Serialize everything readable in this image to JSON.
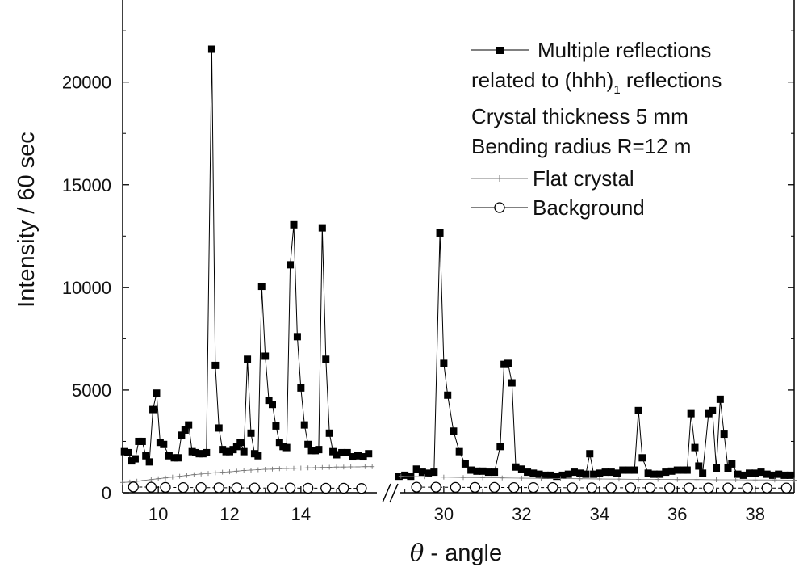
{
  "chart_data": {
    "type": "line",
    "xlabel_symbol": "θ",
    "xlabel": "- angle",
    "ylabel": "Intensity / 60 sec",
    "ylim": [
      0,
      24000
    ],
    "x_segments": [
      {
        "xlim": [
          9,
          16.2
        ],
        "ticks": [
          10,
          12,
          14
        ]
      },
      {
        "xlim": [
          28.8,
          39
        ],
        "ticks": [
          30,
          32,
          34,
          36,
          38
        ]
      }
    ],
    "y_ticks": [
      0,
      5000,
      10000,
      15000,
      20000
    ],
    "axis_break": true,
    "legend_position": "top-right",
    "legend_notes": [
      "Crystal thickness 5 mm",
      "Bending radius R=12 m"
    ],
    "series": [
      {
        "name": "Multiple reflections",
        "name_line2": "related to (hhh)",
        "name_line2_sub": "1",
        "name_line2_tail": " reflections",
        "marker": "square",
        "color": "#000000",
        "points": [
          [
            9.05,
            2000
          ],
          [
            9.15,
            1950
          ],
          [
            9.25,
            1550
          ],
          [
            9.35,
            1650
          ],
          [
            9.45,
            2500
          ],
          [
            9.55,
            2500
          ],
          [
            9.65,
            1800
          ],
          [
            9.75,
            1500
          ],
          [
            9.85,
            4050
          ],
          [
            9.95,
            4850
          ],
          [
            10.05,
            2450
          ],
          [
            10.15,
            2350
          ],
          [
            10.3,
            1800
          ],
          [
            10.45,
            1700
          ],
          [
            10.55,
            1700
          ],
          [
            10.65,
            2800
          ],
          [
            10.75,
            3050
          ],
          [
            10.85,
            3300
          ],
          [
            10.95,
            2000
          ],
          [
            11.05,
            1950
          ],
          [
            11.15,
            1900
          ],
          [
            11.25,
            1900
          ],
          [
            11.35,
            1950
          ],
          [
            11.5,
            21600
          ],
          [
            11.6,
            6200
          ],
          [
            11.7,
            3150
          ],
          [
            11.8,
            2100
          ],
          [
            11.9,
            2000
          ],
          [
            12.0,
            2000
          ],
          [
            12.1,
            2100
          ],
          [
            12.2,
            2250
          ],
          [
            12.3,
            2450
          ],
          [
            12.4,
            2000
          ],
          [
            12.5,
            6500
          ],
          [
            12.6,
            2900
          ],
          [
            12.7,
            1900
          ],
          [
            12.8,
            1800
          ],
          [
            12.9,
            10050
          ],
          [
            13.0,
            6650
          ],
          [
            13.1,
            4500
          ],
          [
            13.2,
            4300
          ],
          [
            13.3,
            3250
          ],
          [
            13.4,
            2450
          ],
          [
            13.5,
            2250
          ],
          [
            13.6,
            2200
          ],
          [
            13.7,
            11100
          ],
          [
            13.8,
            13050
          ],
          [
            13.9,
            7600
          ],
          [
            14.0,
            5100
          ],
          [
            14.1,
            3300
          ],
          [
            14.2,
            2350
          ],
          [
            14.3,
            2050
          ],
          [
            14.4,
            2050
          ],
          [
            14.5,
            2100
          ],
          [
            14.6,
            12900
          ],
          [
            14.7,
            6500
          ],
          [
            14.8,
            2900
          ],
          [
            14.9,
            2000
          ],
          [
            15.0,
            1850
          ],
          [
            15.15,
            1950
          ],
          [
            15.3,
            1950
          ],
          [
            15.45,
            1750
          ],
          [
            15.6,
            1800
          ],
          [
            15.75,
            1750
          ],
          [
            15.9,
            1900
          ],
          null,
          [
            28.85,
            800
          ],
          [
            29.0,
            850
          ],
          [
            29.15,
            800
          ],
          [
            29.3,
            1150
          ],
          [
            29.45,
            1000
          ],
          [
            29.6,
            950
          ],
          [
            29.75,
            1000
          ],
          [
            29.9,
            12650
          ],
          [
            30.0,
            6300
          ],
          [
            30.1,
            4750
          ],
          [
            30.25,
            3000
          ],
          [
            30.4,
            2000
          ],
          [
            30.55,
            1400
          ],
          [
            30.7,
            1100
          ],
          [
            30.85,
            1050
          ],
          [
            31.0,
            1050
          ],
          [
            31.15,
            1000
          ],
          [
            31.3,
            1000
          ],
          [
            31.45,
            2250
          ],
          [
            31.55,
            6250
          ],
          [
            31.65,
            6300
          ],
          [
            31.75,
            5350
          ],
          [
            31.85,
            1250
          ],
          [
            32.0,
            1150
          ],
          [
            32.15,
            1000
          ],
          [
            32.3,
            950
          ],
          [
            32.45,
            900
          ],
          [
            32.6,
            850
          ],
          [
            32.75,
            850
          ],
          [
            32.9,
            800
          ],
          [
            33.05,
            850
          ],
          [
            33.2,
            900
          ],
          [
            33.35,
            1000
          ],
          [
            33.5,
            950
          ],
          [
            33.65,
            900
          ],
          [
            33.75,
            1900
          ],
          [
            33.85,
            900
          ],
          [
            34.0,
            950
          ],
          [
            34.15,
            1000
          ],
          [
            34.3,
            1000
          ],
          [
            34.45,
            950
          ],
          [
            34.6,
            1100
          ],
          [
            34.75,
            1100
          ],
          [
            34.9,
            1100
          ],
          [
            35.0,
            4000
          ],
          [
            35.1,
            1700
          ],
          [
            35.25,
            950
          ],
          [
            35.4,
            900
          ],
          [
            35.55,
            900
          ],
          [
            35.7,
            1000
          ],
          [
            35.85,
            1050
          ],
          [
            36.0,
            1100
          ],
          [
            36.15,
            1100
          ],
          [
            36.25,
            1100
          ],
          [
            36.35,
            3850
          ],
          [
            36.45,
            2200
          ],
          [
            36.55,
            1300
          ],
          [
            36.65,
            950
          ],
          [
            36.8,
            3850
          ],
          [
            36.9,
            4000
          ],
          [
            37.0,
            1200
          ],
          [
            37.1,
            4550
          ],
          [
            37.2,
            2850
          ],
          [
            37.3,
            1200
          ],
          [
            37.4,
            1400
          ],
          [
            37.55,
            900
          ],
          [
            37.7,
            850
          ],
          [
            37.85,
            950
          ],
          [
            38.0,
            950
          ],
          [
            38.15,
            1000
          ],
          [
            38.3,
            900
          ],
          [
            38.45,
            850
          ],
          [
            38.6,
            900
          ],
          [
            38.75,
            850
          ],
          [
            38.9,
            850
          ]
        ]
      },
      {
        "name": "Flat crystal",
        "marker": "plus",
        "color": "#777777",
        "points": [
          [
            9.0,
            500
          ],
          [
            9.2,
            520
          ],
          [
            9.4,
            560
          ],
          [
            9.6,
            600
          ],
          [
            9.8,
            640
          ],
          [
            10.0,
            680
          ],
          [
            10.2,
            720
          ],
          [
            10.4,
            760
          ],
          [
            10.6,
            800
          ],
          [
            10.8,
            840
          ],
          [
            11.0,
            880
          ],
          [
            11.2,
            910
          ],
          [
            11.4,
            940
          ],
          [
            11.6,
            970
          ],
          [
            11.8,
            1000
          ],
          [
            12.0,
            1020
          ],
          [
            12.2,
            1050
          ],
          [
            12.4,
            1080
          ],
          [
            12.6,
            1100
          ],
          [
            12.8,
            1120
          ],
          [
            13.0,
            1140
          ],
          [
            13.2,
            1150
          ],
          [
            13.4,
            1170
          ],
          [
            13.6,
            1180
          ],
          [
            13.8,
            1190
          ],
          [
            14.0,
            1200
          ],
          [
            14.2,
            1210
          ],
          [
            14.4,
            1220
          ],
          [
            14.6,
            1230
          ],
          [
            14.8,
            1240
          ],
          [
            15.0,
            1250
          ],
          [
            15.2,
            1250
          ],
          [
            15.4,
            1260
          ],
          [
            15.6,
            1260
          ],
          [
            15.8,
            1270
          ],
          [
            16.0,
            1270
          ],
          null,
          [
            28.9,
            800
          ],
          [
            29.5,
            780
          ],
          [
            30.0,
            760
          ],
          [
            30.5,
            740
          ],
          [
            31.0,
            730
          ],
          [
            31.5,
            720
          ],
          [
            32.0,
            710
          ],
          [
            32.5,
            700
          ],
          [
            33.0,
            690
          ],
          [
            33.5,
            680
          ],
          [
            34.0,
            670
          ],
          [
            34.5,
            660
          ],
          [
            35.0,
            650
          ],
          [
            35.5,
            650
          ],
          [
            36.0,
            640
          ],
          [
            36.5,
            640
          ],
          [
            37.0,
            630
          ],
          [
            37.5,
            630
          ],
          [
            38.0,
            620
          ],
          [
            38.5,
            620
          ],
          [
            39.0,
            610
          ]
        ]
      },
      {
        "name": "Background",
        "marker": "circle",
        "color": "#000000",
        "points": [
          [
            9.3,
            280
          ],
          [
            9.8,
            270
          ],
          [
            10.2,
            260
          ],
          [
            10.7,
            250
          ],
          [
            11.2,
            250
          ],
          [
            11.7,
            240
          ],
          [
            12.2,
            240
          ],
          [
            12.7,
            230
          ],
          [
            13.2,
            230
          ],
          [
            13.7,
            230
          ],
          [
            14.2,
            220
          ],
          [
            14.7,
            220
          ],
          [
            15.2,
            220
          ],
          [
            15.7,
            210
          ],
          null,
          [
            29.3,
            270
          ],
          [
            29.8,
            270
          ],
          [
            30.3,
            260
          ],
          [
            30.8,
            260
          ],
          [
            31.3,
            260
          ],
          [
            31.8,
            250
          ],
          [
            32.3,
            250
          ],
          [
            32.8,
            250
          ],
          [
            33.3,
            240
          ],
          [
            33.8,
            240
          ],
          [
            34.3,
            240
          ],
          [
            34.8,
            240
          ],
          [
            35.3,
            240
          ],
          [
            35.8,
            230
          ],
          [
            36.3,
            230
          ],
          [
            36.8,
            230
          ],
          [
            37.3,
            230
          ],
          [
            37.8,
            230
          ],
          [
            38.3,
            230
          ],
          [
            38.8,
            230
          ]
        ]
      }
    ]
  }
}
